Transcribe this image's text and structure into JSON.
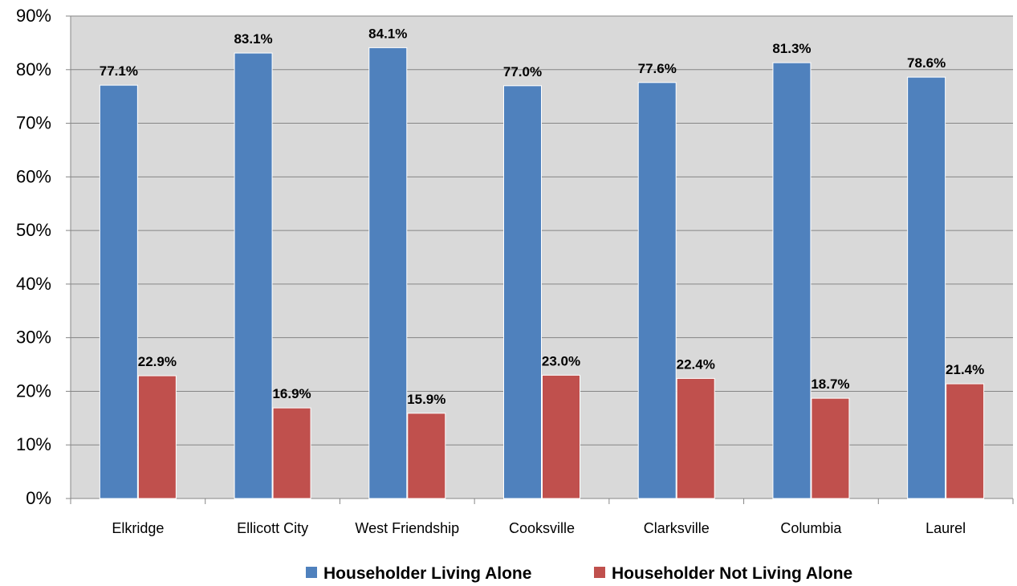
{
  "chart_data": {
    "type": "bar",
    "categories": [
      "Elkridge",
      "Ellicott City",
      "West Friendship",
      "Cooksville",
      "Clarksville",
      "Columbia",
      "Laurel"
    ],
    "series": [
      {
        "name": "Householder Living Alone",
        "color": "#4F81BD",
        "values": [
          77.1,
          83.1,
          84.1,
          77.0,
          77.6,
          81.3,
          78.6
        ],
        "labels": [
          "77.1%",
          "83.1%",
          "84.1%",
          "77.0%",
          "77.6%",
          "81.3%",
          "78.6%"
        ]
      },
      {
        "name": "Householder Not Living Alone",
        "color": "#C0504D",
        "values": [
          22.9,
          16.9,
          15.9,
          23.0,
          22.4,
          18.7,
          21.4
        ],
        "labels": [
          "22.9%",
          "16.9%",
          "15.9%",
          "23.0%",
          "22.4%",
          "18.7%",
          "21.4%"
        ]
      }
    ],
    "ylim": [
      0,
      90
    ],
    "y_ticks": [
      "0%",
      "10%",
      "20%",
      "30%",
      "40%",
      "50%",
      "60%",
      "70%",
      "80%",
      "90%"
    ],
    "title": "",
    "xlabel": "",
    "ylabel": "",
    "grid": true,
    "legend_position": "bottom",
    "plot_background": "#D9D9D9"
  }
}
